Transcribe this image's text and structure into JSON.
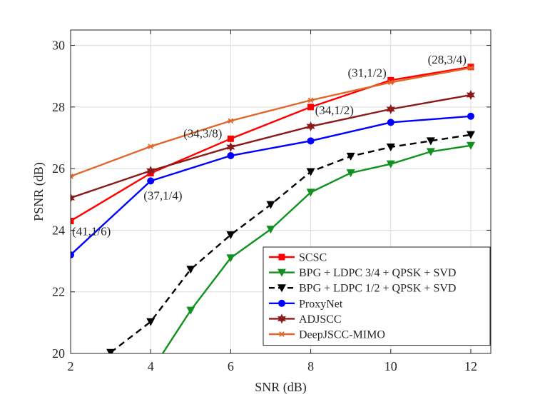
{
  "chart_data": {
    "type": "line",
    "title": "",
    "xlabel": "SNR (dB)",
    "ylabel": "PSNR (dB)",
    "xlim": [
      2,
      12.5
    ],
    "ylim": [
      20,
      30.5
    ],
    "xticks": [
      2,
      4,
      6,
      8,
      10,
      12
    ],
    "yticks": [
      20,
      22,
      24,
      26,
      28,
      30
    ],
    "grid": true,
    "legend_position": "bottom-right",
    "series": [
      {
        "name": "SCSC",
        "color": "#ff0000",
        "marker": "square",
        "dash": "solid",
        "x": [
          2,
          4,
          6,
          8,
          10,
          12
        ],
        "y": [
          24.3,
          25.85,
          26.97,
          28.0,
          28.87,
          29.3
        ]
      },
      {
        "name": "BPG + LDPC 3/4 + QPSK + SVD",
        "color": "#11911f",
        "marker": "triangle-down",
        "dash": "solid",
        "x": [
          4.3,
          5,
          6,
          7,
          8,
          9,
          10,
          11,
          12
        ],
        "y": [
          20.0,
          21.4,
          23.1,
          24.03,
          25.23,
          25.86,
          26.15,
          26.55,
          26.75
        ]
      },
      {
        "name": "BPG + LDPC 1/2 + QPSK + SVD",
        "color": "#000000",
        "marker": "triangle-down",
        "dash": "dashed",
        "x": [
          3,
          4,
          5,
          6,
          7,
          8,
          9,
          10,
          11,
          12
        ],
        "y": [
          20.03,
          21.03,
          22.73,
          23.85,
          24.83,
          25.9,
          26.4,
          26.7,
          26.9,
          27.1
        ]
      },
      {
        "name": "ProxyNet",
        "color": "#0000ff",
        "marker": "circle",
        "dash": "solid",
        "x": [
          2,
          4,
          6,
          8,
          10,
          12
        ],
        "y": [
          23.2,
          25.6,
          26.42,
          26.9,
          27.5,
          27.7
        ]
      },
      {
        "name": "ADJSCC",
        "color": "#8b1a1a",
        "marker": "hexagram",
        "dash": "solid",
        "x": [
          2,
          4,
          6,
          8,
          10,
          12
        ],
        "y": [
          25.05,
          25.93,
          26.7,
          27.37,
          27.93,
          28.39
        ]
      },
      {
        "name": "DeepJSCC-MIMO",
        "color": "#e0662a",
        "marker": "asterisk",
        "dash": "solid",
        "x": [
          2,
          4,
          6,
          8,
          10,
          12
        ],
        "y": [
          25.75,
          26.72,
          27.55,
          28.22,
          28.8,
          29.27
        ]
      }
    ],
    "annotations": [
      {
        "text": "(41,1/6)",
        "x": 2,
        "y": 24.3,
        "anchor": "below-right"
      },
      {
        "text": "(37,1/4)",
        "x": 4,
        "y": 25.6,
        "anchor": "below"
      },
      {
        "text": "(34,3/8)",
        "x": 6,
        "y": 26.97,
        "anchor": "left"
      },
      {
        "text": "(34,1/2)",
        "x": 8,
        "y": 28.0,
        "anchor": "right"
      },
      {
        "text": "(31,1/2)",
        "x": 10,
        "y": 28.87,
        "anchor": "above-left"
      },
      {
        "text": "(28,3/4)",
        "x": 12,
        "y": 29.3,
        "anchor": "above-left"
      }
    ]
  }
}
